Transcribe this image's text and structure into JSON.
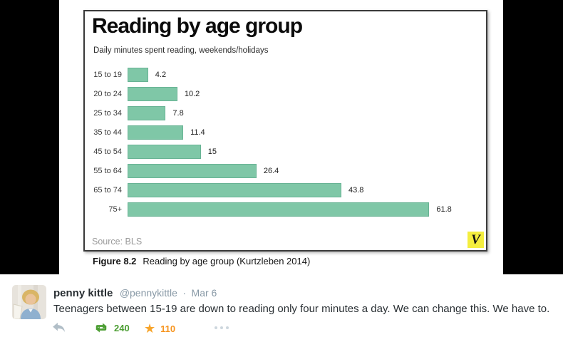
{
  "figure": {
    "label": "Figure 8.2",
    "text": "Reading by age group (Kurtzleben 2014)"
  },
  "chart_data": {
    "type": "bar",
    "orientation": "horizontal",
    "title": "Reading by age group",
    "subtitle": "Daily minutes spent reading, weekends/holidays",
    "categories": [
      "15 to 19",
      "20 to 24",
      "25 to 34",
      "35 to 44",
      "45 to 54",
      "55 to 64",
      "65 to 74",
      "75+"
    ],
    "values": [
      4.2,
      10.2,
      7.8,
      11.4,
      15,
      26.4,
      43.8,
      61.8
    ],
    "value_labels": [
      "4.2",
      "10.2",
      "7.8",
      "11.4",
      "15",
      "26.4",
      "43.8",
      "61.8"
    ],
    "xlim": [
      0,
      65
    ],
    "grid": false,
    "legend": "none",
    "source": "Source: BLS",
    "logo_text": "V",
    "bar_color": "#7fc7a7",
    "bar_border_color": "#68b394"
  },
  "tweet": {
    "display_name": "penny kittle",
    "handle": "@pennykittle",
    "separator": "·",
    "timestamp": "Mar 6",
    "text": "Teenagers between 15-19 are down to reading only four minutes a day. We can change this. We have to.",
    "retweet_count": "240",
    "favorite_count": "110"
  },
  "colors": {
    "retweet_green": "#4c9e33",
    "favorite_orange": "#f7941d",
    "reply_gray": "#b1bec7",
    "logo_yellow": "#f4ee3f",
    "photo_band_black": "#000000"
  }
}
